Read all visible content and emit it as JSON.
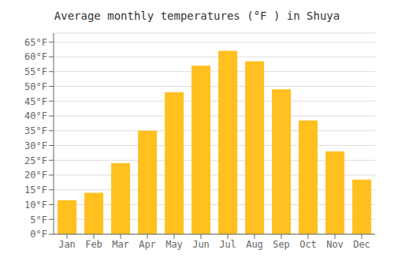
{
  "chart_data": {
    "type": "bar",
    "title": "Average monthly temperatures (°F ) in Shuya",
    "categories": [
      "Jan",
      "Feb",
      "Mar",
      "Apr",
      "May",
      "Jun",
      "Jul",
      "Aug",
      "Sep",
      "Oct",
      "Nov",
      "Dec"
    ],
    "values": [
      11.5,
      14.0,
      24.0,
      35.0,
      48.0,
      57.0,
      62.0,
      58.5,
      49.0,
      38.5,
      28.0,
      18.5
    ],
    "color": "#FFC020",
    "ylim": [
      0,
      68
    ],
    "yticks": [
      {
        "value": 0,
        "label": "0°F"
      },
      {
        "value": 5,
        "label": "5°F"
      },
      {
        "value": 10,
        "label": "10°F"
      },
      {
        "value": 15,
        "label": "15°F"
      },
      {
        "value": 20,
        "label": "20°F"
      },
      {
        "value": 25,
        "label": "25°F"
      },
      {
        "value": 30,
        "label": "30°F"
      },
      {
        "value": 35,
        "label": "35°F"
      },
      {
        "value": 40,
        "label": "40°F"
      },
      {
        "value": 45,
        "label": "45°F"
      },
      {
        "value": 50,
        "label": "50°F"
      },
      {
        "value": 55,
        "label": "55°F"
      },
      {
        "value": 60,
        "label": "60°F"
      },
      {
        "value": 65,
        "label": "65°F"
      }
    ],
    "grid": true
  }
}
